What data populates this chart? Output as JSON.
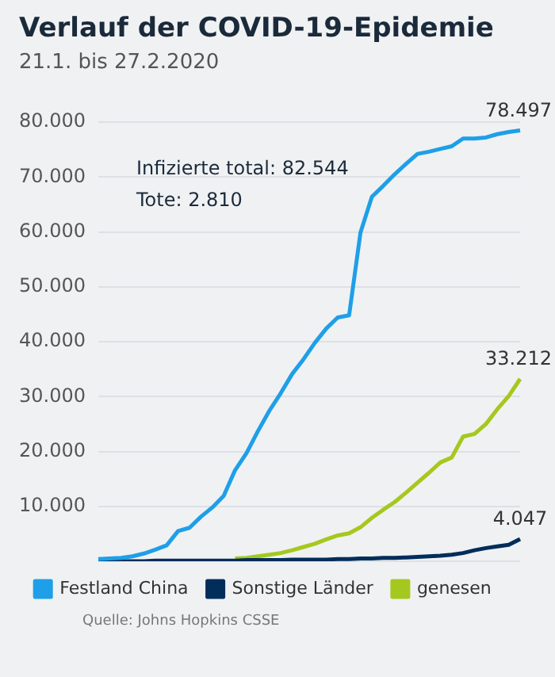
{
  "chart_data": {
    "type": "line",
    "title": "Verlauf der COVID-19-Epidemie",
    "subtitle": "21.1. bis 27.2.2020",
    "categories": [
      null,
      null,
      null,
      null,
      null,
      null,
      null,
      null,
      null,
      null,
      null,
      null,
      null,
      null,
      null,
      null,
      null,
      null,
      null,
      null,
      null,
      null,
      null,
      null,
      null,
      null,
      null,
      null,
      null,
      null,
      null,
      null,
      null,
      null,
      null,
      null,
      null,
      null
    ],
    "series": [
      {
        "name": "Festland China",
        "color": "#1e9fe8",
        "values": [
          400,
          500,
          600,
          900,
          1400,
          2100,
          2900,
          5500,
          6100,
          8100,
          9800,
          11900,
          16600,
          19700,
          23700,
          27400,
          30600,
          34100,
          36800,
          39800,
          42400,
          44400,
          44800,
          59900,
          66400,
          68400,
          70500,
          72400,
          74200,
          74600,
          75100,
          75600,
          77000,
          77000,
          77200,
          77800,
          78200,
          78497
        ],
        "value_labels": [
          null,
          null,
          null,
          null,
          null,
          null,
          null,
          null,
          null,
          null,
          null,
          null,
          null,
          null,
          null,
          null,
          null,
          null,
          null,
          null,
          null,
          null,
          null,
          null,
          null,
          null,
          null,
          null,
          null,
          null,
          null,
          null,
          null,
          null,
          null,
          null,
          null,
          "78.497"
        ]
      },
      {
        "name": "Sonstige Länder",
        "color": "#002d5a",
        "values": [
          0,
          0,
          0,
          0,
          0,
          100,
          100,
          100,
          100,
          100,
          100,
          100,
          100,
          200,
          200,
          200,
          200,
          300,
          300,
          300,
          300,
          400,
          400,
          500,
          500,
          600,
          600,
          700,
          800,
          900,
          1000,
          1200,
          1500,
          2000,
          2400,
          2700,
          3000,
          4047
        ],
        "value_labels": [
          null,
          null,
          null,
          null,
          null,
          null,
          null,
          null,
          null,
          null,
          null,
          null,
          null,
          null,
          null,
          null,
          null,
          null,
          null,
          null,
          null,
          null,
          null,
          null,
          null,
          null,
          null,
          null,
          null,
          null,
          null,
          null,
          null,
          null,
          null,
          null,
          null,
          "4.047"
        ]
      },
      {
        "name": "genesen",
        "color": "#a5c81e",
        "values": [
          null,
          null,
          null,
          null,
          null,
          null,
          null,
          null,
          null,
          null,
          null,
          null,
          500,
          600,
          900,
          1200,
          1500,
          2000,
          2600,
          3200,
          4000,
          4700,
          5100,
          6200,
          7900,
          9400,
          10800,
          12500,
          14300,
          16100,
          18000,
          18900,
          22700,
          23200,
          25000,
          27700,
          30100,
          33212
        ],
        "value_labels": [
          null,
          null,
          null,
          null,
          null,
          null,
          null,
          null,
          null,
          null,
          null,
          null,
          null,
          null,
          null,
          null,
          null,
          null,
          null,
          null,
          null,
          null,
          null,
          null,
          null,
          null,
          null,
          null,
          null,
          null,
          null,
          null,
          null,
          null,
          null,
          null,
          null,
          "33.212"
        ]
      }
    ],
    "ylim": [
      0,
      80000
    ],
    "yticks": [
      {
        "value": 0,
        "label": null
      },
      {
        "value": 10000,
        "label": "10.000"
      },
      {
        "value": 20000,
        "label": "20.000"
      },
      {
        "value": 30000,
        "label": "30.000"
      },
      {
        "value": 40000,
        "label": "40.000"
      },
      {
        "value": 50000,
        "label": "50.000"
      },
      {
        "value": 60000,
        "label": "60.000"
      },
      {
        "value": 70000,
        "label": "70.000"
      },
      {
        "value": 80000,
        "label": "80.000"
      }
    ],
    "grid": "y",
    "legend": "bottom",
    "marker": "none",
    "line_style": "solid",
    "tick_labels": "y",
    "annotations": [
      "Infizierte total: 82.544",
      "Tote: 2.810",
      "Quelle: Johns Hopkins CSSE"
    ]
  }
}
